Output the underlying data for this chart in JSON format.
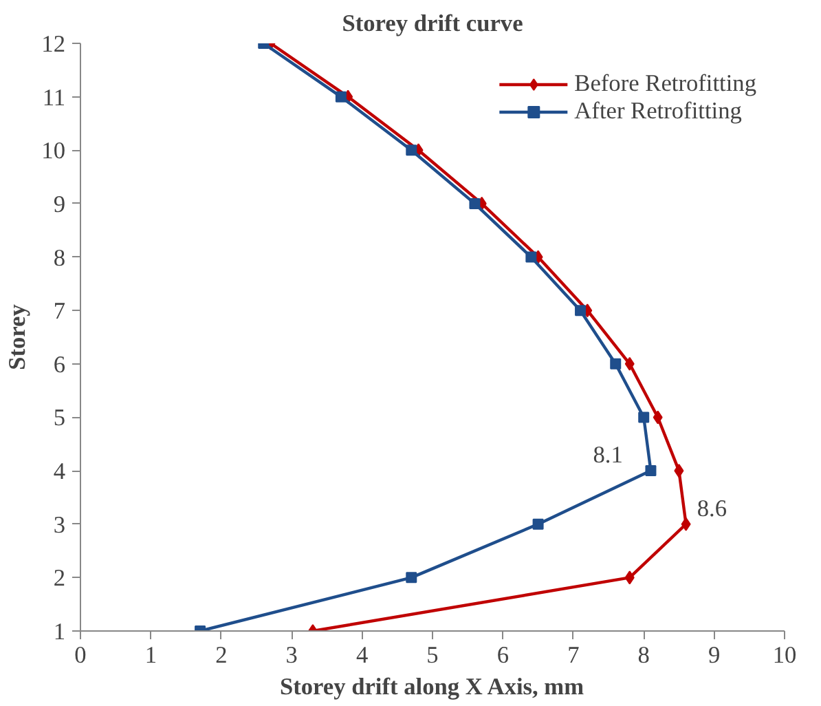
{
  "chart_data": {
    "type": "line",
    "title": "Storey drift curve",
    "xlabel": "Storey drift along X Axis, mm",
    "ylabel": "Storey",
    "series": [
      {
        "name": "Before Retrofitting",
        "color": "#c00000",
        "marker": "diamond",
        "x": [
          3.3,
          7.8,
          8.6,
          8.5,
          8.2,
          7.8,
          7.2,
          6.5,
          5.7,
          4.8,
          3.8,
          2.7
        ],
        "values": [
          1,
          2,
          3,
          4,
          5,
          6,
          7,
          8,
          9,
          10,
          11,
          12
        ]
      },
      {
        "name": "After Retrofitting",
        "color": "#1f4e8c",
        "marker": "square",
        "x": [
          1.7,
          4.7,
          6.5,
          8.1,
          8.0,
          7.6,
          7.1,
          6.4,
          5.6,
          4.7,
          3.7,
          2.6
        ],
        "values": [
          1,
          2,
          3,
          4,
          5,
          6,
          7,
          8,
          9,
          10,
          11,
          12
        ]
      }
    ],
    "xlim": [
      0,
      10
    ],
    "xticks": [
      0,
      1,
      2,
      3,
      4,
      5,
      6,
      7,
      8,
      9,
      10
    ],
    "ylim": [
      1,
      12
    ],
    "yticks": [
      1,
      2,
      3,
      4,
      5,
      6,
      7,
      8,
      9,
      10,
      11,
      12
    ],
    "annotations": [
      {
        "text": "8.1",
        "x": 8.1,
        "y": 4
      },
      {
        "text": "8.6",
        "x": 8.6,
        "y": 3
      }
    ],
    "grid": false,
    "legend": "top right",
    "line_style": "solid"
  }
}
